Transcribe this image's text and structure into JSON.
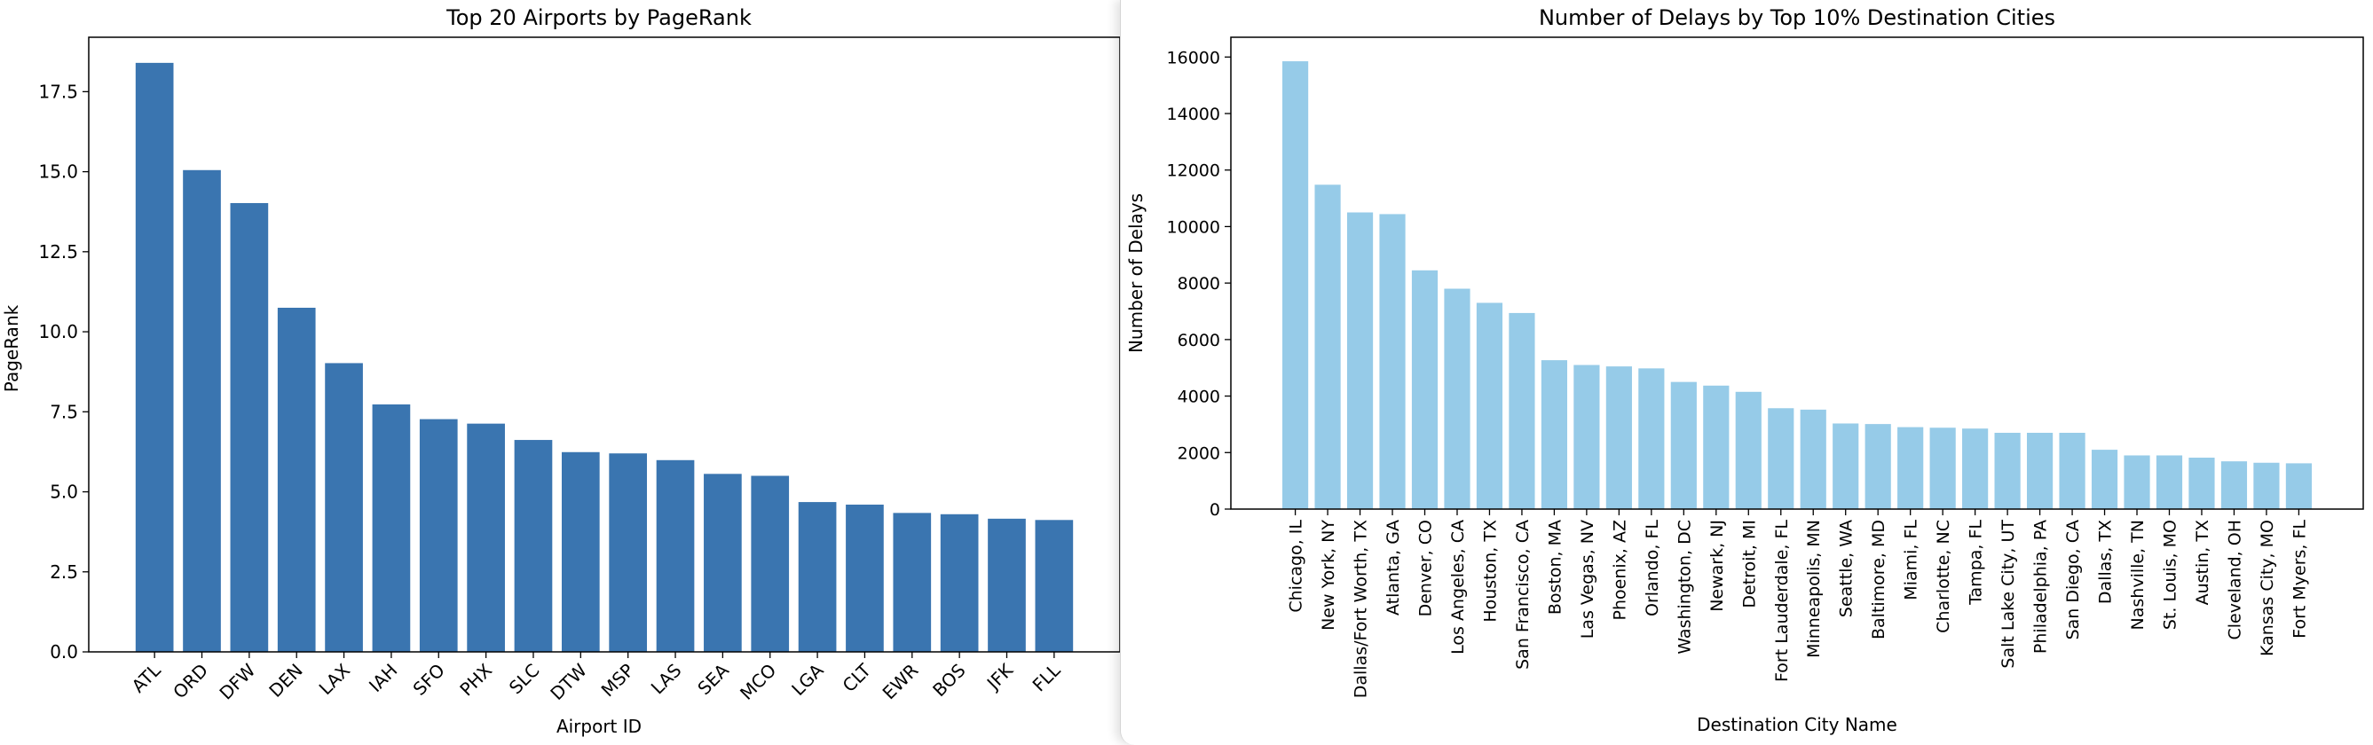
{
  "chart_data": [
    {
      "type": "bar",
      "title": "Top 20 Airports by PageRank",
      "xlabel": "Airport ID",
      "ylabel": "PageRank",
      "color": "#3a75b0",
      "categories": [
        "ATL",
        "ORD",
        "DFW",
        "DEN",
        "LAX",
        "IAH",
        "SFO",
        "PHX",
        "SLC",
        "DTW",
        "MSP",
        "LAS",
        "SEA",
        "MCO",
        "LGA",
        "CLT",
        "EWR",
        "BOS",
        "JFK",
        "FLL"
      ],
      "values": [
        18.4,
        15.05,
        14.02,
        10.75,
        9.02,
        7.73,
        7.27,
        7.13,
        6.62,
        6.24,
        6.2,
        5.99,
        5.56,
        5.5,
        4.68,
        4.6,
        4.34,
        4.3,
        4.16,
        4.12
      ],
      "ylim": [
        0,
        19.2
      ],
      "yticks": [
        "0.0",
        "2.5",
        "5.0",
        "7.5",
        "10.0",
        "12.5",
        "15.0",
        "17.5"
      ],
      "grid": false,
      "tick_rotation": 45
    },
    {
      "type": "bar",
      "title": "Number of Delays by Top 10% Destination Cities",
      "xlabel": "Destination City Name",
      "ylabel": "Number of Delays",
      "color": "#96cbe8",
      "categories": [
        "Chicago, IL",
        "New York, NY",
        "Dallas/Fort Worth, TX",
        "Atlanta, GA",
        "Denver, CO",
        "Los Angeles, CA",
        "Houston, TX",
        "San Francisco, CA",
        "Boston, MA",
        "Las Vegas, NV",
        "Phoenix, AZ",
        "Orlando, FL",
        "Washington, DC",
        "Newark, NJ",
        "Detroit, MI",
        "Fort Lauderdale, FL",
        "Minneapolis, MN",
        "Seattle, WA",
        "Baltimore, MD",
        "Miami, FL",
        "Charlotte, NC",
        "Tampa, FL",
        "Salt Lake City, UT",
        "Philadelphia, PA",
        "San Diego, CA",
        "Dallas, TX",
        "Nashville, TN",
        "St. Louis, MO",
        "Austin, TX",
        "Cleveland, OH",
        "Kansas City, MO",
        "Fort Myers, FL"
      ],
      "values": [
        15850,
        11480,
        10500,
        10440,
        8450,
        7800,
        7300,
        6940,
        5270,
        5100,
        5050,
        4980,
        4500,
        4370,
        4150,
        3570,
        3520,
        3030,
        3010,
        2900,
        2880,
        2850,
        2700,
        2700,
        2700,
        2100,
        1900,
        1900,
        1820,
        1690,
        1640,
        1620
      ],
      "ylim": [
        0,
        16700
      ],
      "yticks": [
        "0",
        "2000",
        "4000",
        "6000",
        "8000",
        "10000",
        "12000",
        "14000",
        "16000"
      ],
      "grid": false,
      "tick_rotation": 90
    }
  ]
}
